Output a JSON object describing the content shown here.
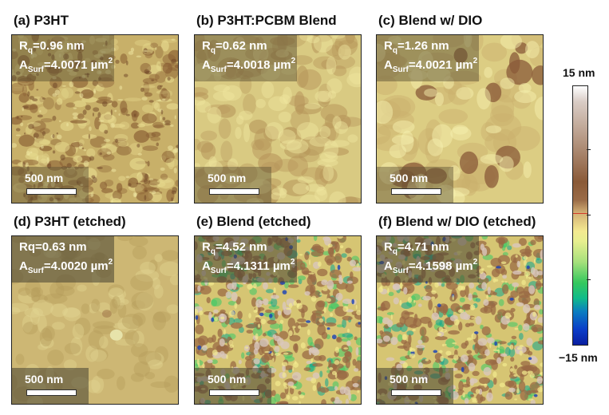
{
  "panels": [
    {
      "id": "a",
      "title": "(a) P3HT",
      "rq_label": "R",
      "rq_sub": "q",
      "rq_value": "=0.96 nm",
      "a_label": "A",
      "a_sub": "Surf",
      "a_value": "=4.0071 µm",
      "a_sup": "2",
      "scale": "500 nm",
      "texture": "p3ht"
    },
    {
      "id": "b",
      "title": "(b) P3HT:PCBM Blend",
      "rq_label": "R",
      "rq_sub": "q",
      "rq_value": "=0.62 nm",
      "a_label": "A",
      "a_sub": "Surf",
      "a_value": "=4.0018 µm",
      "a_sup": "2",
      "scale": "500 nm",
      "texture": "blend"
    },
    {
      "id": "c",
      "title": "(c) Blend w/ DIO",
      "rq_label": "R",
      "rq_sub": "q",
      "rq_value": "=1.26 nm",
      "a_label": "A",
      "a_sub": "Surf",
      "a_value": "=4.0021 µm",
      "a_sup": "2",
      "scale": "500 nm",
      "texture": "dio"
    },
    {
      "id": "d",
      "title": "(d) P3HT (etched)",
      "rq_label": "Rq",
      "rq_sub": "",
      "rq_value": "=0.63 nm",
      "a_label": "A",
      "a_sub": "Surf",
      "a_value": "=4.0020 µm",
      "a_sup": "2",
      "scale": "500 nm",
      "texture": "p3ht-etched"
    },
    {
      "id": "e",
      "title": "(e) Blend (etched)",
      "rq_label": "R",
      "rq_sub": "q",
      "rq_value": "=4.52 nm",
      "a_label": "A",
      "a_sub": "Surf",
      "a_value": "=4.1311 µm",
      "a_sup": "2",
      "scale": "500 nm",
      "texture": "etched-rough"
    },
    {
      "id": "f",
      "title": "(f) Blend w/ DIO (etched)",
      "rq_label": "R",
      "rq_sub": "q",
      "rq_value": "=4.71 nm",
      "a_label": "A",
      "a_sub": "Surf",
      "a_value": "=4.1598 µm",
      "a_sup": "2",
      "scale": "500 nm",
      "texture": "etched-rough"
    }
  ],
  "colorbar": {
    "max_label": "15 nm",
    "min_label": "−15 nm"
  }
}
